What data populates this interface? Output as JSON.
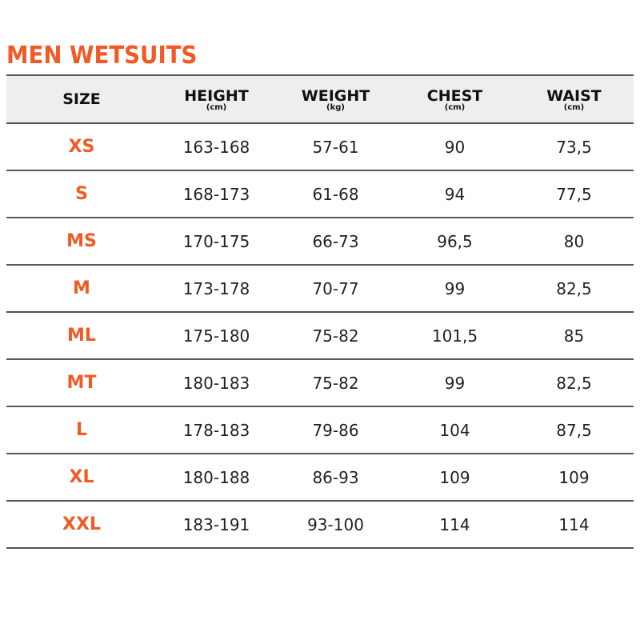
{
  "title": "MEN WETSUITS",
  "colors": {
    "accent": "#f15a24",
    "header_bg": "#eeeeee"
  },
  "columns": [
    {
      "label": "SIZE",
      "unit": ""
    },
    {
      "label": "HEIGHT",
      "unit": "(cm)"
    },
    {
      "label": "WEIGHT",
      "unit": "(kg)"
    },
    {
      "label": "CHEST",
      "unit": "(cm)"
    },
    {
      "label": "WAIST",
      "unit": "(cm)"
    }
  ],
  "rows": [
    [
      "XS",
      "163-168",
      "57-61",
      "90",
      "73,5"
    ],
    [
      "S",
      "168-173",
      "61-68",
      "94",
      "77,5"
    ],
    [
      "MS",
      "170-175",
      "66-73",
      "96,5",
      "80"
    ],
    [
      "M",
      "173-178",
      "70-77",
      "99",
      "82,5"
    ],
    [
      "ML",
      "175-180",
      "75-82",
      "101,5",
      "85"
    ],
    [
      "MT",
      "180-183",
      "75-82",
      "99",
      "82,5"
    ],
    [
      "L",
      "178-183",
      "79-86",
      "104",
      "87,5"
    ],
    [
      "XL",
      "180-188",
      "86-93",
      "109",
      "109"
    ],
    [
      "XXL",
      "183-191",
      "93-100",
      "114",
      "114"
    ]
  ]
}
